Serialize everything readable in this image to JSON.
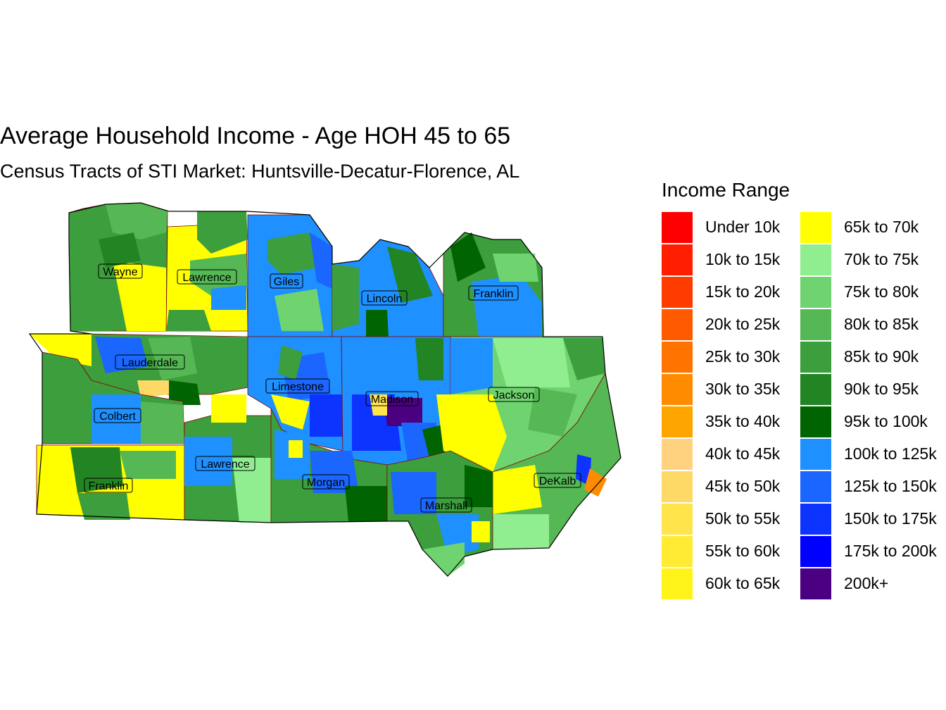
{
  "title": "Average Household Income - Age HOH 45 to 65",
  "subtitle": "Census Tracts of STI Market: Huntsville-Decatur-Florence, AL",
  "legend": {
    "title": "Income Range",
    "items": [
      {
        "label": "Under 10k",
        "color": "#FF0000"
      },
      {
        "label": "10k to 15k",
        "color": "#FF1E00"
      },
      {
        "label": "15k to 20k",
        "color": "#FF3C00"
      },
      {
        "label": "20k to 25k",
        "color": "#FF5A00"
      },
      {
        "label": "25k to 30k",
        "color": "#FF7300"
      },
      {
        "label": "30k to 35k",
        "color": "#FF8C00"
      },
      {
        "label": "35k to 40k",
        "color": "#FFA500"
      },
      {
        "label": "40k to 45k",
        "color": "#FFD27F"
      },
      {
        "label": "45k to 50k",
        "color": "#FFD966"
      },
      {
        "label": "50k to 55k",
        "color": "#FFE44C"
      },
      {
        "label": "55k to 60k",
        "color": "#FFEB33"
      },
      {
        "label": "60k to 65k",
        "color": "#FFF319"
      },
      {
        "label": "65k to 70k",
        "color": "#FFFF00"
      },
      {
        "label": "70k to 75k",
        "color": "#90EE90"
      },
      {
        "label": "75k to 80k",
        "color": "#6FD36F"
      },
      {
        "label": "80k to 85k",
        "color": "#55B855"
      },
      {
        "label": "85k to 90k",
        "color": "#3C9E3C"
      },
      {
        "label": "90k to 95k",
        "color": "#228422"
      },
      {
        "label": "95k to 100k",
        "color": "#006400"
      },
      {
        "label": "100k to 125k",
        "color": "#1E90FF"
      },
      {
        "label": "125k to 150k",
        "color": "#1A66FF"
      },
      {
        "label": "150k to 175k",
        "color": "#0D33FF"
      },
      {
        "label": "175k to 200k",
        "color": "#0000FF"
      },
      {
        "label": "200k+",
        "color": "#4B0082"
      }
    ]
  },
  "counties": [
    {
      "name": "Wayne"
    },
    {
      "name": "Lawrence"
    },
    {
      "name": "Giles"
    },
    {
      "name": "Lincoln"
    },
    {
      "name": "Franklin"
    },
    {
      "name": "Lauderdale"
    },
    {
      "name": "Limestone"
    },
    {
      "name": "Madison"
    },
    {
      "name": "Jackson"
    },
    {
      "name": "Colbert"
    },
    {
      "name": "Lawrence"
    },
    {
      "name": "Franklin"
    },
    {
      "name": "Morgan"
    },
    {
      "name": "Marshall"
    },
    {
      "name": "DeKalb"
    }
  ]
}
